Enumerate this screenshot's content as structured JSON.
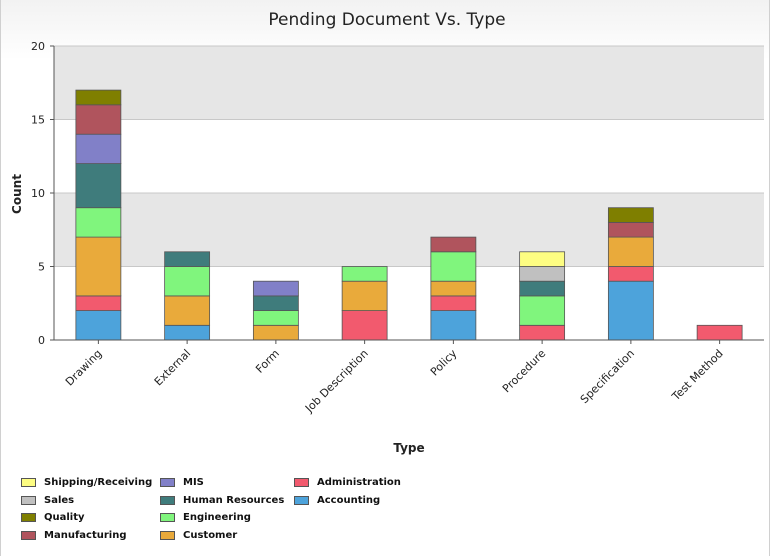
{
  "chart_data": {
    "type": "bar",
    "stacked": true,
    "title": "Pending Document Vs. Type",
    "xlabel": "Type",
    "ylabel": "Count",
    "ylim": [
      0,
      20
    ],
    "yticks": [
      "0",
      "5",
      "10",
      "15",
      "20"
    ],
    "grid": true,
    "legend_position": "bottom-left",
    "categories": [
      "Drawing",
      "External",
      "Form",
      "Job Description",
      "Policy",
      "Procedure",
      "Specification",
      "Test Method"
    ],
    "series": [
      {
        "name": "Accounting",
        "color": "#4da3db",
        "values": [
          2,
          1,
          0,
          0,
          2,
          0,
          4,
          0
        ]
      },
      {
        "name": "Administration",
        "color": "#f25a6e",
        "values": [
          1,
          0,
          0,
          2,
          1,
          1,
          1,
          1
        ]
      },
      {
        "name": "Customer",
        "color": "#e9aa3b",
        "values": [
          4,
          2,
          1,
          2,
          1,
          0,
          2,
          0
        ]
      },
      {
        "name": "Engineering",
        "color": "#80f57d",
        "values": [
          2,
          2,
          1,
          1,
          2,
          2,
          0,
          0
        ]
      },
      {
        "name": "Human Resources",
        "color": "#3f7c7c",
        "values": [
          3,
          1,
          1,
          0,
          0,
          1,
          0,
          0
        ]
      },
      {
        "name": "MIS",
        "color": "#8180c8",
        "values": [
          2,
          0,
          1,
          0,
          0,
          0,
          0,
          0
        ]
      },
      {
        "name": "Manufacturing",
        "color": "#b0545d",
        "values": [
          2,
          0,
          0,
          0,
          1,
          0,
          1,
          0
        ]
      },
      {
        "name": "Quality",
        "color": "#7f7f00",
        "values": [
          1,
          0,
          0,
          0,
          0,
          0,
          1,
          0
        ]
      },
      {
        "name": "Sales",
        "color": "#c0c0c0",
        "values": [
          0,
          0,
          0,
          0,
          0,
          1,
          0,
          0
        ]
      },
      {
        "name": "Shipping/Receiving",
        "color": "#fdfd82",
        "values": [
          0,
          0,
          0,
          0,
          0,
          1,
          0,
          0
        ]
      }
    ]
  },
  "legend": {
    "items": [
      {
        "label": "Shipping/Receiving",
        "color": "#fdfd82"
      },
      {
        "label": "MIS",
        "color": "#8180c8"
      },
      {
        "label": "Administration",
        "color": "#f25a6e"
      },
      {
        "label": "Sales",
        "color": "#c0c0c0"
      },
      {
        "label": "Human Resources",
        "color": "#3f7c7c"
      },
      {
        "label": "Accounting",
        "color": "#4da3db"
      },
      {
        "label": "Quality",
        "color": "#7f7f00"
      },
      {
        "label": "Engineering",
        "color": "#80f57d"
      },
      {
        "label": "",
        "color": ""
      },
      {
        "label": "Manufacturing",
        "color": "#b0545d"
      },
      {
        "label": "Customer",
        "color": "#e9aa3b"
      },
      {
        "label": "",
        "color": ""
      }
    ]
  }
}
